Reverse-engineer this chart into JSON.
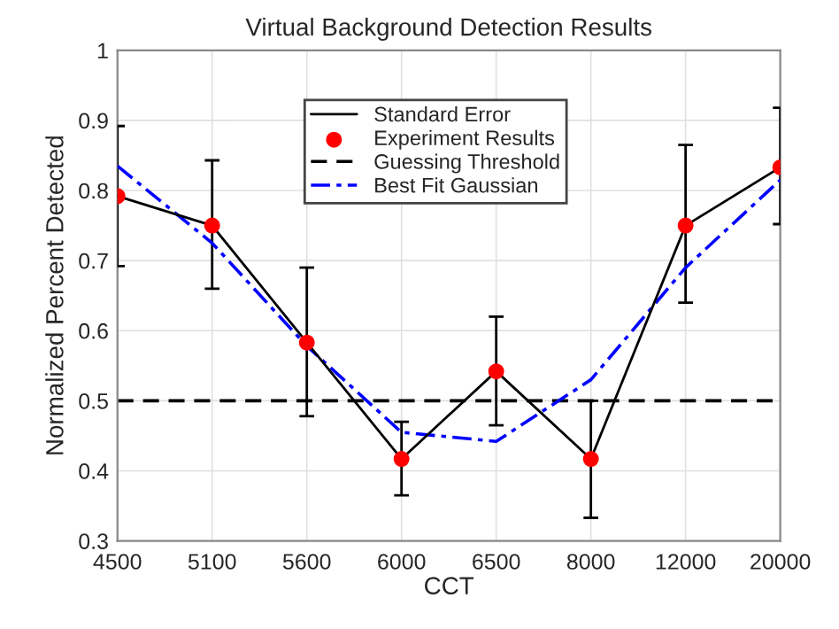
{
  "chart_data": {
    "type": "line",
    "title": "Virtual Background Detection Results",
    "xlabel": "CCT",
    "ylabel": "Normalized Percent Detected",
    "categories": [
      "4500",
      "5100",
      "5600",
      "6000",
      "6500",
      "8000",
      "12000",
      "20000"
    ],
    "ylim": [
      0.3,
      1
    ],
    "yticks": [
      0.3,
      0.4,
      0.5,
      0.6,
      0.7,
      0.8,
      0.9,
      1
    ],
    "series": [
      {
        "name": "Standard Error",
        "type": "line",
        "color": "#000000",
        "values": [
          0.792,
          0.75,
          0.583,
          0.417,
          0.542,
          0.417,
          0.75,
          0.833
        ],
        "errors": [
          [
            0.692,
            0.892
          ],
          [
            0.66,
            0.843
          ],
          [
            0.478,
            0.69
          ],
          [
            0.365,
            0.47
          ],
          [
            0.465,
            0.62
          ],
          [
            0.333,
            0.5
          ],
          [
            0.64,
            0.865
          ],
          [
            0.752,
            0.918
          ]
        ]
      },
      {
        "name": "Experiment Results",
        "type": "scatter",
        "color": "#ff0000",
        "values": [
          0.792,
          0.75,
          0.583,
          0.417,
          0.542,
          0.417,
          0.75,
          0.833
        ]
      },
      {
        "name": "Best Fit Gaussian",
        "type": "line",
        "color": "#0000ff",
        "line_style": "dashdot",
        "values": [
          0.835,
          0.725,
          0.578,
          0.455,
          0.442,
          0.53,
          0.69,
          0.815
        ]
      }
    ],
    "ref_lines": [
      {
        "axis": "y",
        "value": 0.5,
        "label": "Guessing Threshold",
        "color": "#000000",
        "line_style": "dashed"
      }
    ],
    "grid": true,
    "legend": "top"
  }
}
